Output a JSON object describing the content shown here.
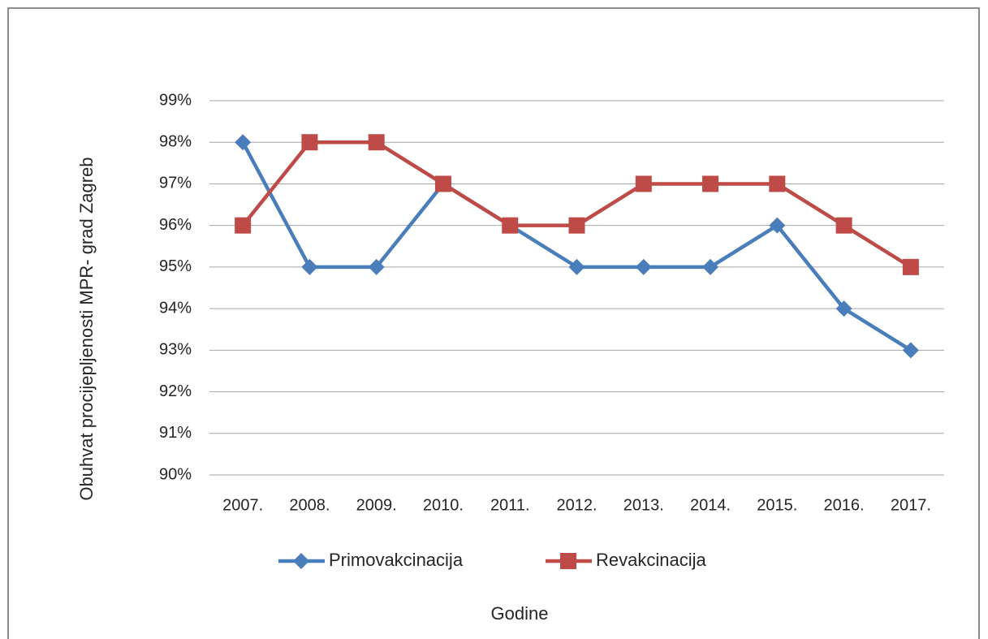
{
  "chart_data": {
    "type": "line",
    "x_label": "Godine",
    "y_label": "Obuhvat procijepljenosti MPR- grad Zagreb",
    "categories": [
      "2007.",
      "2008.",
      "2009.",
      "2010.",
      "2011.",
      "2012.",
      "2013.",
      "2014.",
      "2015.",
      "2016.",
      "2017."
    ],
    "series": [
      {
        "name": "Primovakcinacija",
        "color": "#4a7ebb",
        "marker": "diamond",
        "values": [
          98,
          95,
          95,
          97,
          96,
          95,
          95,
          95,
          96,
          94,
          93
        ]
      },
      {
        "name": "Revakcinacija",
        "color": "#be4b48",
        "marker": "square",
        "values": [
          96,
          98,
          98,
          97,
          96,
          96,
          97,
          97,
          97,
          96,
          95
        ]
      }
    ],
    "ylim": [
      90,
      99
    ],
    "yticks": [
      {
        "value": 90,
        "label": "90%"
      },
      {
        "value": 91,
        "label": "91%"
      },
      {
        "value": 92,
        "label": "92%"
      },
      {
        "value": 93,
        "label": "93%"
      },
      {
        "value": 94,
        "label": "94%"
      },
      {
        "value": 95,
        "label": "95%"
      },
      {
        "value": 96,
        "label": "96%"
      },
      {
        "value": 97,
        "label": "97%"
      },
      {
        "value": 98,
        "label": "98%"
      },
      {
        "value": 99,
        "label": "99%"
      }
    ],
    "grid": true,
    "legend": "bottom"
  }
}
